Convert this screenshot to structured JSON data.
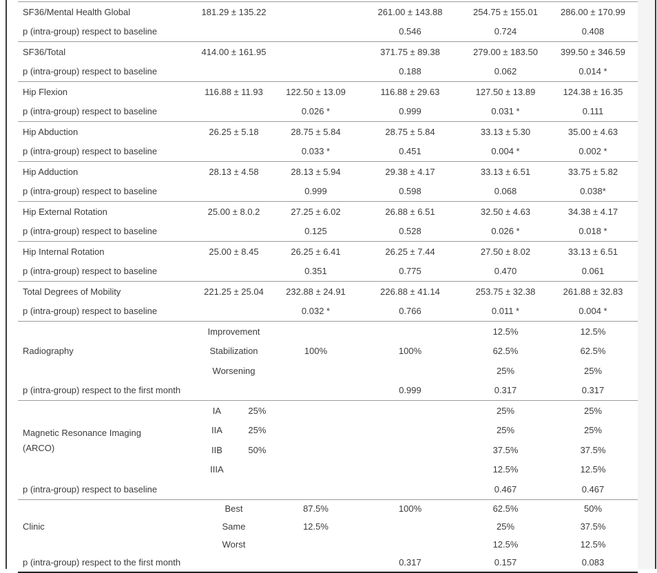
{
  "colors": {
    "text": "#3b3b3b",
    "row_separator": "#9b9b9b",
    "bottom_border": "#222222",
    "frame_line": "#3a3a3a",
    "right_gutter": "#f4f4f4",
    "background": "#ffffff"
  },
  "table": {
    "groups": [
      {
        "rows": [
          {
            "kind": "measure",
            "label": "SF36/Mental Health Global",
            "cells": [
              "181.29 ± 135.22",
              "",
              "261.00 ± 143.88",
              "254.75 ± 155.01",
              "286.00 ± 170.99"
            ]
          },
          {
            "kind": "p",
            "label": "p (intra-group) respect to baseline",
            "cells": [
              "",
              "",
              "0.546",
              "0.724",
              "0.408"
            ]
          }
        ]
      },
      {
        "rows": [
          {
            "kind": "measure",
            "label": "SF36/Total",
            "cells": [
              "414.00 ± 161.95",
              "",
              "371.75 ± 89.38",
              "279.00 ± 183.50",
              "399.50 ± 346.59"
            ]
          },
          {
            "kind": "p",
            "label": "p (intra-group) respect to baseline",
            "cells": [
              "",
              "",
              "0.188",
              "0.062",
              "0.014 *"
            ]
          }
        ]
      },
      {
        "rows": [
          {
            "kind": "measure",
            "label": "Hip Flexion",
            "cells": [
              "116.88 ± 11.93",
              "122.50 ± 13.09",
              "116.88 ± 29.63",
              "127.50 ± 13.89",
              "124.38 ± 16.35"
            ]
          },
          {
            "kind": "p",
            "label": "p (intra-group) respect to baseline",
            "cells": [
              "",
              "0.026 *",
              "0.999",
              "0.031 *",
              "0.111"
            ]
          }
        ]
      },
      {
        "rows": [
          {
            "kind": "measure",
            "label": "Hip Abduction",
            "cells": [
              "26.25 ± 5.18",
              "28.75 ± 5.84",
              "28.75 ± 5.84",
              "33.13 ± 5.30",
              "35.00 ± 4.63"
            ]
          },
          {
            "kind": "p",
            "label": "p (intra-group) respect to baseline",
            "cells": [
              "",
              "0.033 *",
              "0.451",
              "0.004 *",
              "0.002 *"
            ]
          }
        ]
      },
      {
        "rows": [
          {
            "kind": "measure",
            "label": "Hip Adduction",
            "cells": [
              "28.13 ± 4.58",
              "28.13 ± 5.94",
              "29.38 ± 4.17",
              "33.13 ± 6.51",
              "33.75 ± 5.82"
            ]
          },
          {
            "kind": "p",
            "label": "p (intra-group) respect to baseline",
            "cells": [
              "",
              "0.999",
              "0.598",
              "0.068",
              "0.038*"
            ]
          }
        ]
      },
      {
        "rows": [
          {
            "kind": "measure",
            "label": "Hip External Rotation",
            "cells": [
              "25.00 ± 8.0.2",
              "27.25 ± 6.02",
              "26.88 ± 6.51",
              "32.50 ± 4.63",
              "34.38 ± 4.17"
            ]
          },
          {
            "kind": "p",
            "label": "p (intra-group) respect to baseline",
            "cells": [
              "",
              "0.125",
              "0.528",
              "0.026 *",
              "0.018 *"
            ]
          }
        ]
      },
      {
        "rows": [
          {
            "kind": "measure",
            "label": "Hip Internal Rotation",
            "cells": [
              "25.00 ± 8.45",
              "26.25 ± 6.41",
              "26.25 ± 7.44",
              "27.50 ± 8.02",
              "33.13 ± 6.51"
            ]
          },
          {
            "kind": "p",
            "label": "p (intra-group) respect to baseline",
            "cells": [
              "",
              "0.351",
              "0.775",
              "0.470",
              "0.061"
            ]
          }
        ]
      },
      {
        "rows": [
          {
            "kind": "measure",
            "label": "Total Degrees of Mobility",
            "cells": [
              "221.25 ± 25.04",
              "232.88 ± 24.91",
              "226.88 ± 41.14",
              "253.75 ± 32.38",
              "261.88 ± 32.83"
            ]
          },
          {
            "kind": "p",
            "label": "p (intra-group) respect to baseline",
            "cells": [
              "",
              "0.032 *",
              "0.766",
              "0.011 *",
              "0.004 *"
            ]
          }
        ]
      },
      {
        "multi": true,
        "label_lines": [
          "Radiography"
        ],
        "subrows": [
          {
            "sublabel": "Improvement",
            "cells": [
              "",
              "",
              "12.5%",
              "12.5%"
            ]
          },
          {
            "sublabel": "Stabilization",
            "cells": [
              "100%",
              "100%",
              "62.5%",
              "62.5%"
            ]
          },
          {
            "sublabel": "Worsening",
            "cells": [
              "",
              "",
              "25%",
              "25%"
            ]
          }
        ],
        "p_row": {
          "label": "p (intra-group) respect to the first month",
          "cells": [
            "",
            "",
            "0.999",
            "0.317",
            "0.317"
          ]
        }
      },
      {
        "multi": true,
        "label_lines": [
          "Magnetic Resonance Imaging",
          "(ARCO)"
        ],
        "subrows": [
          {
            "grade": "IA",
            "pct": "25%",
            "cells": [
              "",
              "",
              "25%",
              "25%"
            ]
          },
          {
            "grade": "IIA",
            "pct": "25%",
            "cells": [
              "",
              "",
              "25%",
              "25%"
            ]
          },
          {
            "grade": "IIB",
            "pct": "50%",
            "cells": [
              "",
              "",
              "37.5%",
              "37.5%"
            ]
          },
          {
            "grade": "IIIA",
            "pct": "",
            "cells": [
              "",
              "",
              "12.5%",
              "12.5%"
            ]
          }
        ],
        "p_row": {
          "label": "p (intra-group) respect to baseline",
          "cells": [
            "",
            "",
            "",
            "0.467",
            "0.467"
          ]
        }
      },
      {
        "multi": true,
        "label_lines": [
          "Clinic"
        ],
        "subrows": [
          {
            "sublabel": "Best",
            "cells": [
              "87.5%",
              "100%",
              "62.5%",
              "50%"
            ]
          },
          {
            "sublabel": "Same",
            "cells": [
              "12.5%",
              "",
              "25%",
              "37.5%"
            ]
          },
          {
            "sublabel": "Worst",
            "cells": [
              "",
              "",
              "12.5%",
              "12.5%"
            ]
          }
        ],
        "p_row": {
          "label": "p (intra-group) respect to the first month",
          "cells": [
            "",
            "",
            "0.317",
            "0.157",
            "0.083"
          ]
        }
      }
    ]
  }
}
